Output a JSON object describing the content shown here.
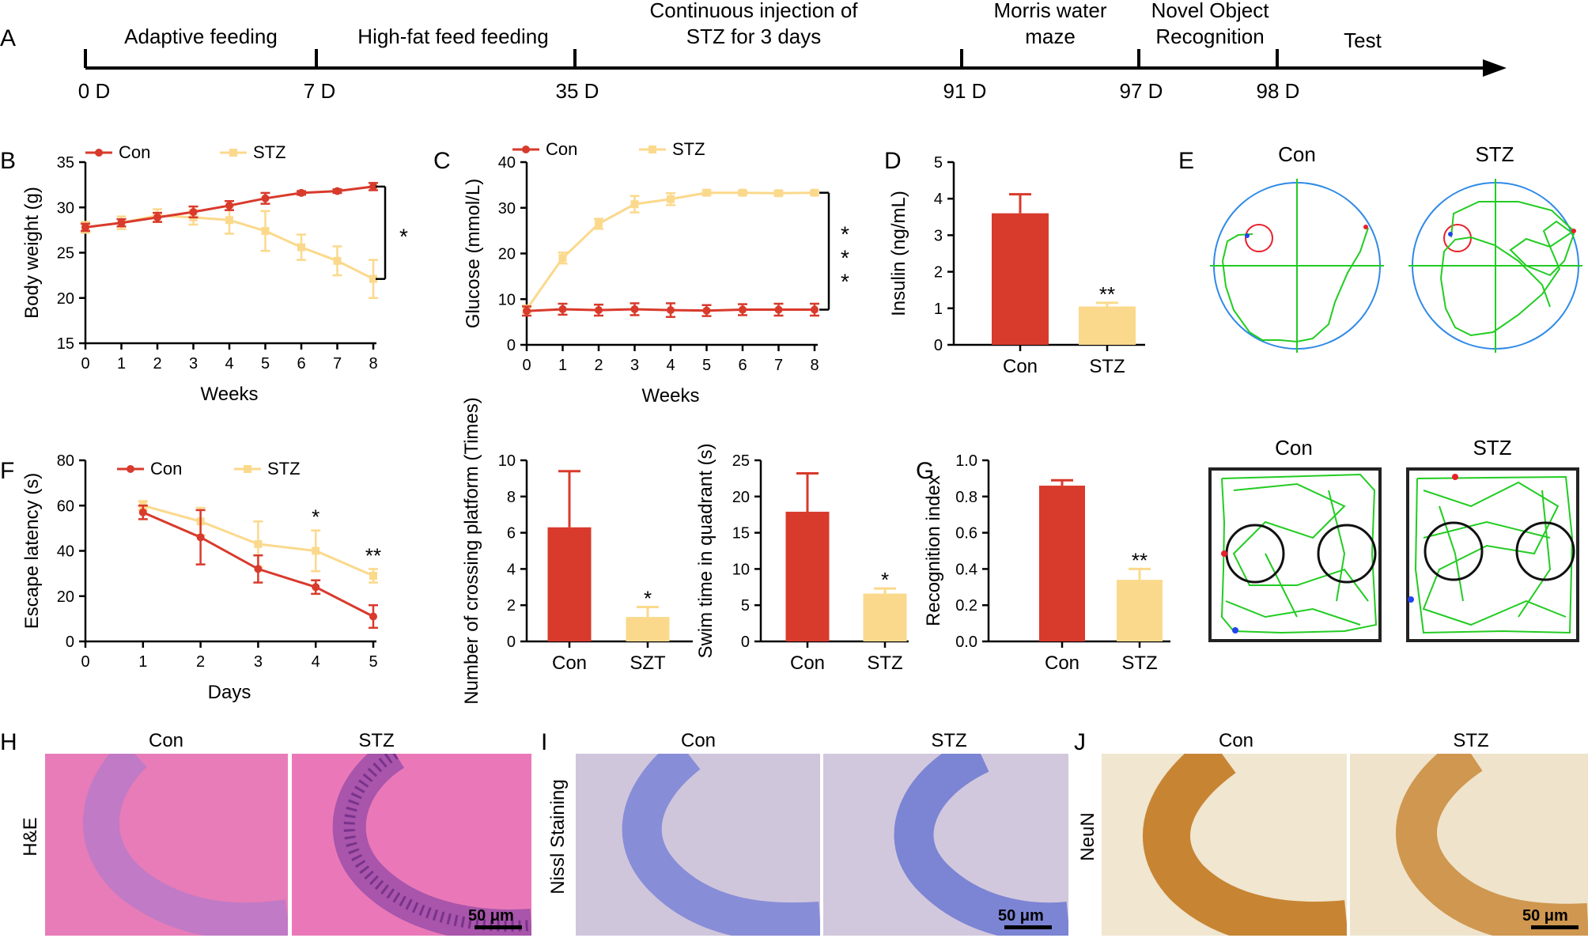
{
  "colors": {
    "con": "#d83a2c",
    "stz": "#fbd98c",
    "track": "#22cc22",
    "pool": "#2f8ae8",
    "redCircle": "#e8202a"
  },
  "timeline": {
    "panel_label": "A",
    "phases": [
      "Adaptive feeding",
      "High-fat feed feeding",
      "Continuous injection of",
      "STZ for 3 days",
      "Morris water",
      "maze",
      "Novel Object",
      "Recognition",
      "Test"
    ],
    "ticks": [
      "0 D",
      "7 D",
      "35 D",
      "91 D",
      "97 D",
      "98 D"
    ]
  },
  "images": {
    "H": {
      "label": "H",
      "row_label": "H&E",
      "con": "Con",
      "stz": "STZ",
      "scale": "50 μm"
    },
    "I": {
      "label": "I",
      "row_label": "Nissl Staining",
      "con": "Con",
      "stz": "STZ",
      "scale": "50 μm"
    },
    "J": {
      "label": "J",
      "row_label": "NeuN",
      "con": "Con",
      "stz": "STZ",
      "scale": "50 μm"
    }
  },
  "panelE": {
    "label": "E",
    "con": "Con",
    "stz": "STZ"
  },
  "panelE2": {
    "con": "Con",
    "stz": "STZ"
  },
  "chart_data": [
    {
      "id": "B",
      "label": "B",
      "type": "line",
      "title": "",
      "xlabel": "Weeks",
      "ylabel": "Body weight (g)",
      "xlim": [
        0,
        8
      ],
      "ylim": [
        15,
        35
      ],
      "xticks": [
        "0",
        "1",
        "2",
        "3",
        "4",
        "5",
        "6",
        "7",
        "8"
      ],
      "yticks": [
        "15",
        "20",
        "25",
        "30",
        "35"
      ],
      "x": [
        0,
        1,
        2,
        3,
        4,
        5,
        6,
        7,
        8
      ],
      "series": [
        {
          "name": "Con",
          "values": [
            27.8,
            28.3,
            28.9,
            29.5,
            30.2,
            31.0,
            31.6,
            31.8,
            32.3
          ],
          "errors": [
            0.4,
            0.4,
            0.5,
            0.6,
            0.5,
            0.6,
            0.2,
            0.2,
            0.4
          ]
        },
        {
          "name": "STZ",
          "values": [
            27.8,
            28.3,
            29.1,
            28.9,
            28.6,
            27.4,
            25.6,
            24.1,
            22.1
          ],
          "errors": [
            0.6,
            0.7,
            0.7,
            0.8,
            1.5,
            2.2,
            1.4,
            1.6,
            2.1
          ]
        }
      ],
      "sig": "*"
    },
    {
      "id": "C",
      "label": "C",
      "type": "line",
      "title": "",
      "xlabel": "Weeks",
      "ylabel": "Glucose (mmol/L)",
      "xlim": [
        0,
        8
      ],
      "ylim": [
        0,
        40
      ],
      "xticks": [
        "0",
        "1",
        "2",
        "3",
        "4",
        "5",
        "6",
        "7",
        "8"
      ],
      "yticks": [
        "0",
        "10",
        "20",
        "30",
        "40"
      ],
      "x": [
        0,
        1,
        2,
        3,
        4,
        5,
        6,
        7,
        8
      ],
      "series": [
        {
          "name": "Con",
          "values": [
            7.4,
            7.8,
            7.6,
            7.8,
            7.6,
            7.5,
            7.7,
            7.7,
            7.7
          ],
          "errors": [
            1.0,
            1.2,
            1.2,
            1.3,
            1.5,
            1.2,
            1.2,
            1.3,
            1.3
          ]
        },
        {
          "name": "STZ",
          "values": [
            7.8,
            19.0,
            26.5,
            30.8,
            31.9,
            33.3,
            33.3,
            33.2,
            33.3
          ],
          "errors": [
            0.8,
            1.2,
            1.1,
            1.8,
            1.3,
            0.5,
            0.4,
            0.5,
            0.4
          ]
        }
      ],
      "sig": "***"
    },
    {
      "id": "D",
      "label": "D",
      "type": "bar",
      "title": "",
      "xlabel": "",
      "ylabel": "Insulin (ng/mL)",
      "ylim": [
        0,
        5
      ],
      "yticks": [
        "0",
        "1",
        "2",
        "3",
        "4",
        "5"
      ],
      "categories": [
        "Con",
        "STZ"
      ],
      "values": [
        3.6,
        1.05
      ],
      "errors": [
        0.52,
        0.1
      ],
      "sig": [
        "",
        "**"
      ]
    },
    {
      "id": "F",
      "label": "F",
      "type": "line",
      "title": "",
      "xlabel": "Days",
      "ylabel": "Escape latency (s)",
      "xlim": [
        0,
        5
      ],
      "ylim": [
        0,
        80
      ],
      "xticks": [
        "0",
        "1",
        "2",
        "3",
        "4",
        "5"
      ],
      "yticks": [
        "0",
        "20",
        "40",
        "60",
        "80"
      ],
      "x": [
        1,
        2,
        3,
        4,
        5
      ],
      "series": [
        {
          "name": "Con",
          "values": [
            57,
            46,
            32,
            24,
            11
          ],
          "errors": [
            3,
            12,
            6,
            3,
            5
          ]
        },
        {
          "name": "STZ",
          "values": [
            60,
            53,
            43,
            40,
            29
          ],
          "errors": [
            2,
            6,
            10,
            9,
            3
          ]
        }
      ],
      "sig_points": [
        {
          "x": 4,
          "text": "*"
        },
        {
          "x": 5,
          "text": "**"
        }
      ]
    },
    {
      "id": "F2",
      "type": "bar",
      "title": "",
      "xlabel": "",
      "ylabel": "Number of crossing platform (Times)",
      "ylim": [
        0,
        10
      ],
      "yticks": [
        "0",
        "2",
        "4",
        "6",
        "8",
        "10"
      ],
      "categories": [
        "Con",
        "SZT"
      ],
      "values": [
        6.3,
        1.35
      ],
      "errors": [
        3.1,
        0.55
      ],
      "sig": [
        "",
        "*"
      ]
    },
    {
      "id": "F3",
      "type": "bar",
      "title": "",
      "xlabel": "",
      "ylabel": "Swim time in quadrant (s)",
      "ylim": [
        0,
        25
      ],
      "yticks": [
        "0",
        "5",
        "10",
        "15",
        "20",
        "25"
      ],
      "categories": [
        "Con",
        "STZ"
      ],
      "values": [
        17.9,
        6.6
      ],
      "errors": [
        5.3,
        0.7
      ],
      "sig": [
        "",
        "*"
      ]
    },
    {
      "id": "G",
      "label": "G",
      "type": "bar",
      "title": "",
      "xlabel": "",
      "ylabel": "Recognition index",
      "ylim": [
        0,
        1.0
      ],
      "yticks": [
        "0.0",
        "0.2",
        "0.4",
        "0.6",
        "0.8",
        "1.0"
      ],
      "categories": [
        "Con",
        "STZ"
      ],
      "values": [
        0.86,
        0.34
      ],
      "errors": [
        0.03,
        0.06
      ],
      "sig": [
        "",
        "**"
      ]
    }
  ]
}
